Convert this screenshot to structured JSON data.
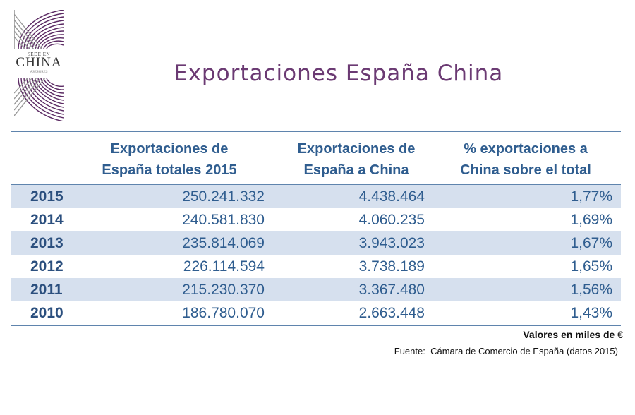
{
  "logo": {
    "top_text": "SEDE EN",
    "main_text": "CHINA",
    "sub_text": "ASESORES"
  },
  "title": "Exportaciones España China",
  "table": {
    "headers": [
      [
        "Exportaciones de",
        "España totales 2015"
      ],
      [
        "Exportaciones de",
        "España a China"
      ],
      [
        "% exportaciones a",
        "China sobre el total"
      ]
    ],
    "rows": [
      {
        "year": "2015",
        "total": "250.241.332",
        "china": "4.438.464",
        "pct": "1,77%"
      },
      {
        "year": "2014",
        "total": "240.581.830",
        "china": "4.060.235",
        "pct": "1,69%"
      },
      {
        "year": "2013",
        "total": "235.814.069",
        "china": "3.943.023",
        "pct": "1,67%"
      },
      {
        "year": "2012",
        "total": "226.114.594",
        "china": "3.738.189",
        "pct": "1,65%"
      },
      {
        "year": "2011",
        "total": "215.230.370",
        "china": "3.367.480",
        "pct": "1,56%"
      },
      {
        "year": "2010",
        "total": "186.780.070",
        "china": "2.663.448",
        "pct": "1,43%"
      }
    ]
  },
  "units_note": "Valores en miles de €",
  "source_note": "Fuente:  Cámara de Comercio de España (datos 2015)",
  "colors": {
    "title": "#6b3a73",
    "header_text": "#2f5d8f",
    "row_shade": "#d6e0ee",
    "rule": "#5f84ad",
    "logo_purple": "#5b2a63"
  }
}
